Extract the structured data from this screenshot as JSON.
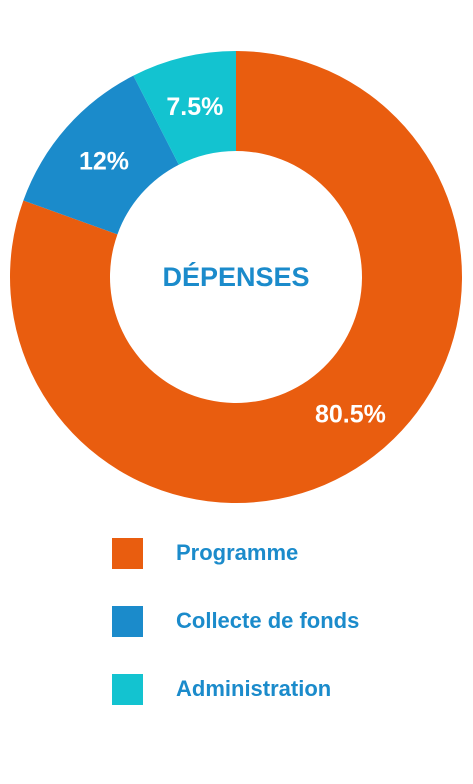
{
  "chart_data": {
    "type": "pie",
    "title": "DÉPENSES",
    "donut": true,
    "categories": [
      "Programme",
      "Collecte de fonds",
      "Administration"
    ],
    "values": [
      80.5,
      12,
      7.5
    ],
    "data_labels": [
      "80.5%",
      "12%",
      "7.5%"
    ],
    "colors": [
      "#e95d0f",
      "#1b8bcb",
      "#13c3d0"
    ],
    "legend_position": "bottom",
    "start": "top",
    "direction": "clockwise"
  },
  "legend": [
    {
      "label": "Programme",
      "color": "#e95d0f"
    },
    {
      "label": "Collecte de fonds",
      "color": "#1b8bcb"
    },
    {
      "label": "Administration",
      "color": "#13c3d0"
    }
  ]
}
